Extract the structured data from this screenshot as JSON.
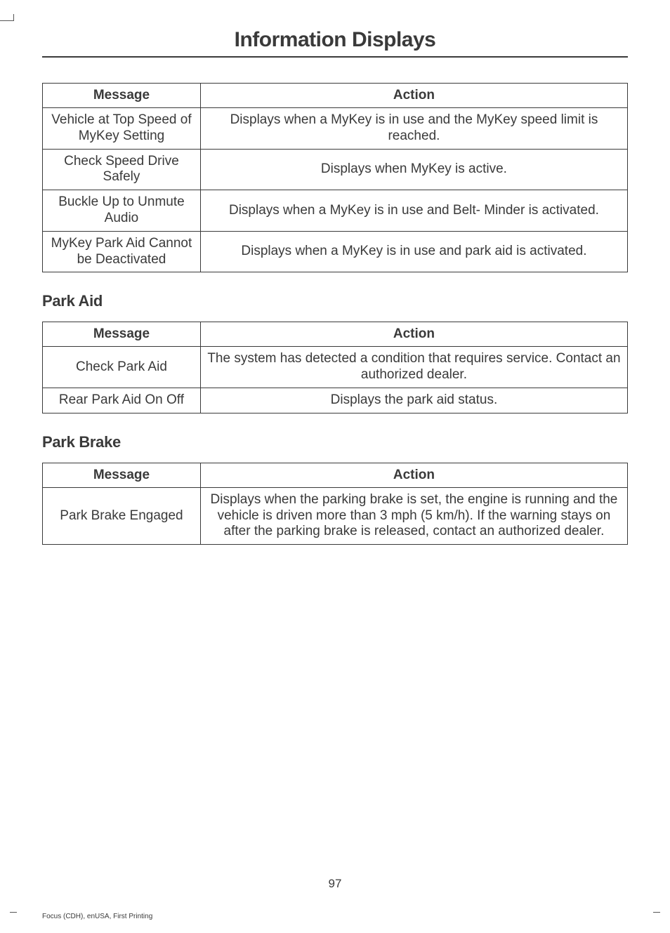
{
  "page": {
    "title": "Information Displays",
    "number": "97",
    "footer": "Focus (CDH), enUSA, First Printing"
  },
  "tables": {
    "t1": {
      "headers": {
        "msg": "Message",
        "act": "Action"
      },
      "rows": [
        {
          "msg": "Vehicle at Top Speed of MyKey Setting",
          "act": "Displays when a MyKey is in use and the MyKey speed limit is reached."
        },
        {
          "msg": "Check Speed Drive Safely",
          "act": "Displays when MyKey is active."
        },
        {
          "msg": "Buckle Up to Unmute Audio",
          "act": "Displays when a MyKey is in use and Belt- Minder is activated."
        },
        {
          "msg": "MyKey Park Aid Cannot be Deactivated",
          "act": "Displays when a MyKey is in use and park aid is activated."
        }
      ]
    },
    "t2": {
      "heading": "Park Aid",
      "headers": {
        "msg": "Message",
        "act": "Action"
      },
      "rows": [
        {
          "msg": "Check Park Aid",
          "act": "The system has detected a condition that requires service. Contact an authorized dealer."
        },
        {
          "msg": "Rear Park Aid On Off",
          "act": "Displays the park aid status."
        }
      ]
    },
    "t3": {
      "heading": "Park Brake",
      "headers": {
        "msg": "Message",
        "act": "Action"
      },
      "rows": [
        {
          "msg": "Park Brake Engaged",
          "act": "Displays when the parking brake is set, the engine is running and the vehicle is driven more than 3 mph (5 km/h). If the warning stays on after the parking brake is released, contact an authorized dealer."
        }
      ]
    }
  },
  "style": {
    "text_color": "#3a3a3a",
    "background_color": "#ffffff",
    "border_color": "#3a3a3a",
    "title_fontsize": 30,
    "heading_fontsize": 22,
    "cell_fontsize": 19,
    "footer_fontsize": 10,
    "col_msg_width_pct": 27,
    "col_act_width_pct": 73
  }
}
